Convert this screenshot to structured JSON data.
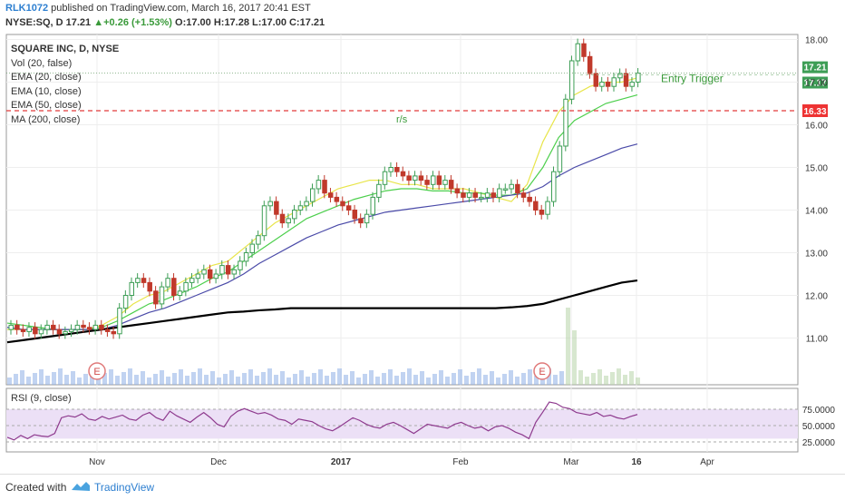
{
  "header": {
    "author": "RLK1072",
    "published": " published on TradingView.com, March 16, 2017 20:41 EST",
    "symbol": "NYSE:SQ, D",
    "price": "17.21",
    "change": "+0.26 (+1.53%)",
    "ohlc": "O:17.00 H:17.28 L:17.00 C:17.21"
  },
  "legend": {
    "title": "SQUARE INC, D, NYSE",
    "lines": [
      "Vol (20, false)",
      "EMA (20, close)",
      "EMA (10, close)",
      "EMA (50, close)",
      "MA (200, close)"
    ]
  },
  "rsi_label": "RSI (9, close)",
  "annotations": {
    "entry_trigger": "Entry Trigger",
    "rs": "r/s",
    "earnings": "E"
  },
  "price_labels": {
    "last": "17.21",
    "trigger": "17.17",
    "support": "16.33"
  },
  "footer": {
    "created_with": "Created with",
    "brand": "TradingView"
  },
  "colors": {
    "up": "#3e9e56",
    "down": "#c0392b",
    "ema10": "#e8e54a",
    "ema20": "#4ccf4c",
    "ema50": "#4a4aa8",
    "ma200": "#000000",
    "volume": "#8eaee6",
    "rsi": "#8e3a8e",
    "rsi_band": "#ece0f6",
    "support_line": "#e23b3b"
  },
  "chart_data": [
    {
      "type": "line",
      "title": "SQUARE INC, D, NYSE",
      "x_tick_labels": [
        "Nov",
        "Dec",
        "2017",
        "Feb",
        "Mar",
        "16",
        "Apr"
      ],
      "y_tick_labels": [
        "11.00",
        "12.00",
        "13.00",
        "14.00",
        "15.00",
        "16.00",
        "17.00",
        "18.00"
      ],
      "ylim": [
        10.5,
        18.5
      ],
      "candles_close": [
        11.3,
        11.2,
        11.15,
        11.25,
        11.1,
        11.2,
        11.3,
        11.2,
        11.1,
        11.15,
        11.2,
        11.3,
        11.25,
        11.2,
        11.3,
        11.2,
        11.15,
        11.1,
        11.7,
        12.0,
        12.3,
        12.4,
        12.3,
        12.1,
        11.8,
        12.2,
        12.4,
        12.0,
        12.1,
        12.3,
        12.4,
        12.5,
        12.6,
        12.4,
        12.5,
        12.7,
        12.5,
        12.6,
        12.8,
        13.0,
        13.2,
        13.4,
        14.1,
        14.2,
        13.9,
        13.7,
        13.8,
        14.0,
        14.1,
        14.2,
        14.5,
        14.7,
        14.4,
        14.3,
        14.2,
        14.1,
        14.0,
        13.8,
        13.7,
        13.9,
        14.3,
        14.6,
        14.9,
        15.0,
        14.9,
        14.8,
        14.7,
        14.8,
        14.7,
        14.6,
        14.8,
        14.6,
        14.7,
        14.5,
        14.4,
        14.3,
        14.4,
        14.3,
        14.3,
        14.4,
        14.3,
        14.5,
        14.5,
        14.6,
        14.4,
        14.3,
        14.2,
        14.0,
        13.9,
        14.2,
        14.9,
        15.5,
        16.6,
        17.5,
        17.9,
        17.6,
        17.2,
        16.9,
        17.0,
        16.9,
        17.1,
        17.2,
        16.9,
        17.0,
        17.21
      ],
      "series": [
        {
          "name": "EMA (10, close)",
          "values": [
            11.2,
            11.2,
            11.2,
            11.2,
            11.2,
            11.2,
            11.3,
            11.5,
            11.8,
            12.0,
            12.1,
            12.3,
            12.5,
            12.7,
            12.8,
            13.1,
            13.4,
            13.7,
            13.9,
            14.1,
            14.3,
            14.5,
            14.6,
            14.7,
            14.7,
            14.6,
            14.6,
            14.5,
            14.5,
            14.5,
            14.4,
            14.3,
            14.2,
            14.6,
            15.6,
            16.3,
            16.7,
            16.9,
            17.0,
            17.0,
            17.1
          ]
        },
        {
          "name": "EMA (20, close)",
          "values": [
            11.35,
            11.3,
            11.25,
            11.2,
            11.2,
            11.2,
            11.25,
            11.4,
            11.6,
            11.8,
            11.9,
            12.05,
            12.2,
            12.4,
            12.55,
            12.8,
            13.05,
            13.3,
            13.55,
            13.8,
            13.95,
            14.1,
            14.25,
            14.35,
            14.45,
            14.5,
            14.5,
            14.45,
            14.45,
            14.4,
            14.4,
            14.35,
            14.35,
            14.5,
            15.0,
            15.7,
            16.1,
            16.3,
            16.5,
            16.6,
            16.7
          ]
        },
        {
          "name": "EMA (50, close)",
          "values": [
            11.25,
            11.2,
            11.2,
            11.2,
            11.2,
            11.2,
            11.2,
            11.3,
            11.45,
            11.6,
            11.7,
            11.85,
            12.0,
            12.15,
            12.3,
            12.5,
            12.75,
            12.95,
            13.15,
            13.35,
            13.5,
            13.65,
            13.75,
            13.85,
            13.95,
            14.0,
            14.05,
            14.1,
            14.15,
            14.2,
            14.25,
            14.3,
            14.35,
            14.4,
            14.55,
            14.8,
            15.0,
            15.15,
            15.3,
            15.45,
            15.55
          ]
        },
        {
          "name": "MA (200, close)",
          "values": [
            10.9,
            10.95,
            11.0,
            11.05,
            11.1,
            11.15,
            11.2,
            11.25,
            11.3,
            11.35,
            11.4,
            11.45,
            11.5,
            11.55,
            11.6,
            11.62,
            11.65,
            11.67,
            11.7,
            11.7,
            11.7,
            11.7,
            11.7,
            11.7,
            11.7,
            11.7,
            11.7,
            11.7,
            11.7,
            11.7,
            11.7,
            11.7,
            11.72,
            11.75,
            11.8,
            11.9,
            12.0,
            12.1,
            12.2,
            12.3,
            12.35
          ]
        }
      ],
      "horizontal_levels": [
        {
          "label": "Entry Trigger",
          "value": 17.17
        },
        {
          "label": "r/s",
          "value": 16.33
        }
      ]
    },
    {
      "type": "line",
      "title": "RSI (9, close)",
      "y_tick_labels": [
        "25.0000",
        "50.0000",
        "75.0000"
      ],
      "ylim": [
        20,
        90
      ],
      "series": [
        {
          "name": "RSI (9, close)",
          "values": [
            32,
            28,
            35,
            30,
            36,
            34,
            33,
            38,
            62,
            65,
            63,
            68,
            60,
            58,
            64,
            60,
            63,
            66,
            60,
            58,
            66,
            70,
            62,
            58,
            72,
            65,
            60,
            55,
            63,
            70,
            62,
            52,
            48,
            64,
            72,
            76,
            72,
            68,
            70,
            66,
            60,
            58,
            52,
            60,
            58,
            56,
            50,
            45,
            42,
            48,
            55,
            62,
            58,
            52,
            48,
            46,
            52,
            55,
            50,
            44,
            38,
            45,
            52,
            50,
            48,
            46,
            52,
            55,
            50,
            46,
            48,
            42,
            48,
            50,
            46,
            40,
            36,
            30,
            55,
            70,
            86,
            84,
            78,
            76,
            70,
            68,
            66,
            70,
            64,
            66,
            62,
            60,
            64,
            67
          ]
        }
      ]
    }
  ]
}
